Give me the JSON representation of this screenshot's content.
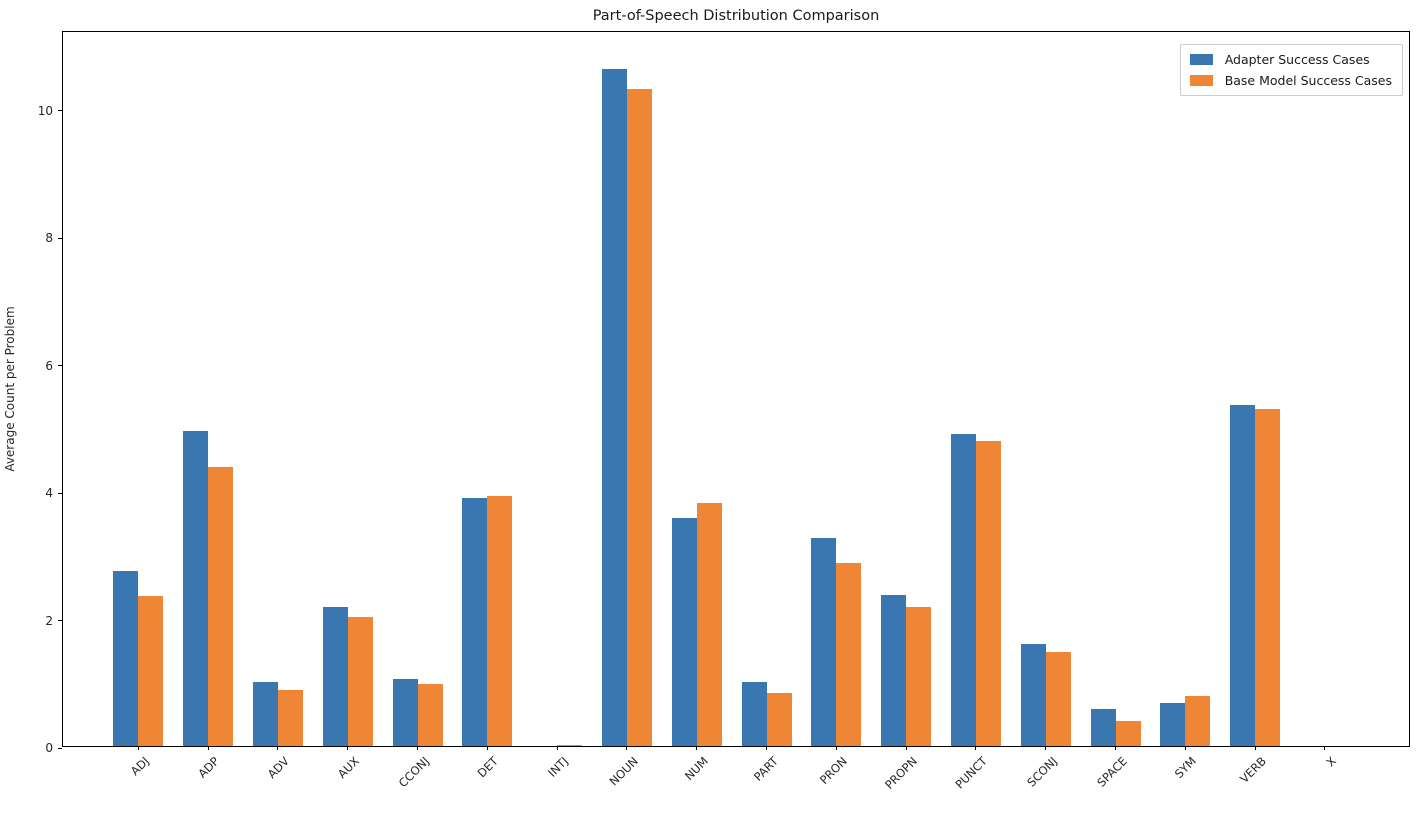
{
  "chart_data": {
    "type": "bar",
    "title": "Part-of-Speech Distribution Comparison",
    "xlabel": "",
    "ylabel": "Average Count per Problem",
    "categories": [
      "ADJ",
      "ADP",
      "ADV",
      "AUX",
      "CCONJ",
      "DET",
      "INTJ",
      "NOUN",
      "NUM",
      "PART",
      "PRON",
      "PROPN",
      "PUNCT",
      "SCONJ",
      "SPACE",
      "SYM",
      "VERB",
      "X"
    ],
    "series": [
      {
        "name": "Adapter Success Cases",
        "color": "#3a76af",
        "values": [
          2.75,
          4.94,
          1.01,
          2.18,
          1.05,
          3.9,
          0.0,
          10.63,
          3.58,
          1.01,
          3.26,
          2.37,
          4.9,
          1.6,
          0.58,
          0.68,
          5.35,
          0.0
        ]
      },
      {
        "name": "Base Model Success Cases",
        "color": "#ef8636",
        "values": [
          2.36,
          4.38,
          0.88,
          2.03,
          0.98,
          3.93,
          0.02,
          10.31,
          3.81,
          0.83,
          2.87,
          2.18,
          4.79,
          1.47,
          0.4,
          0.79,
          5.29,
          0.0
        ]
      }
    ],
    "yticks": [
      0,
      2,
      4,
      6,
      8,
      10
    ],
    "ylim": [
      0,
      11.24
    ],
    "grid": false,
    "legend_position": "upper right"
  }
}
